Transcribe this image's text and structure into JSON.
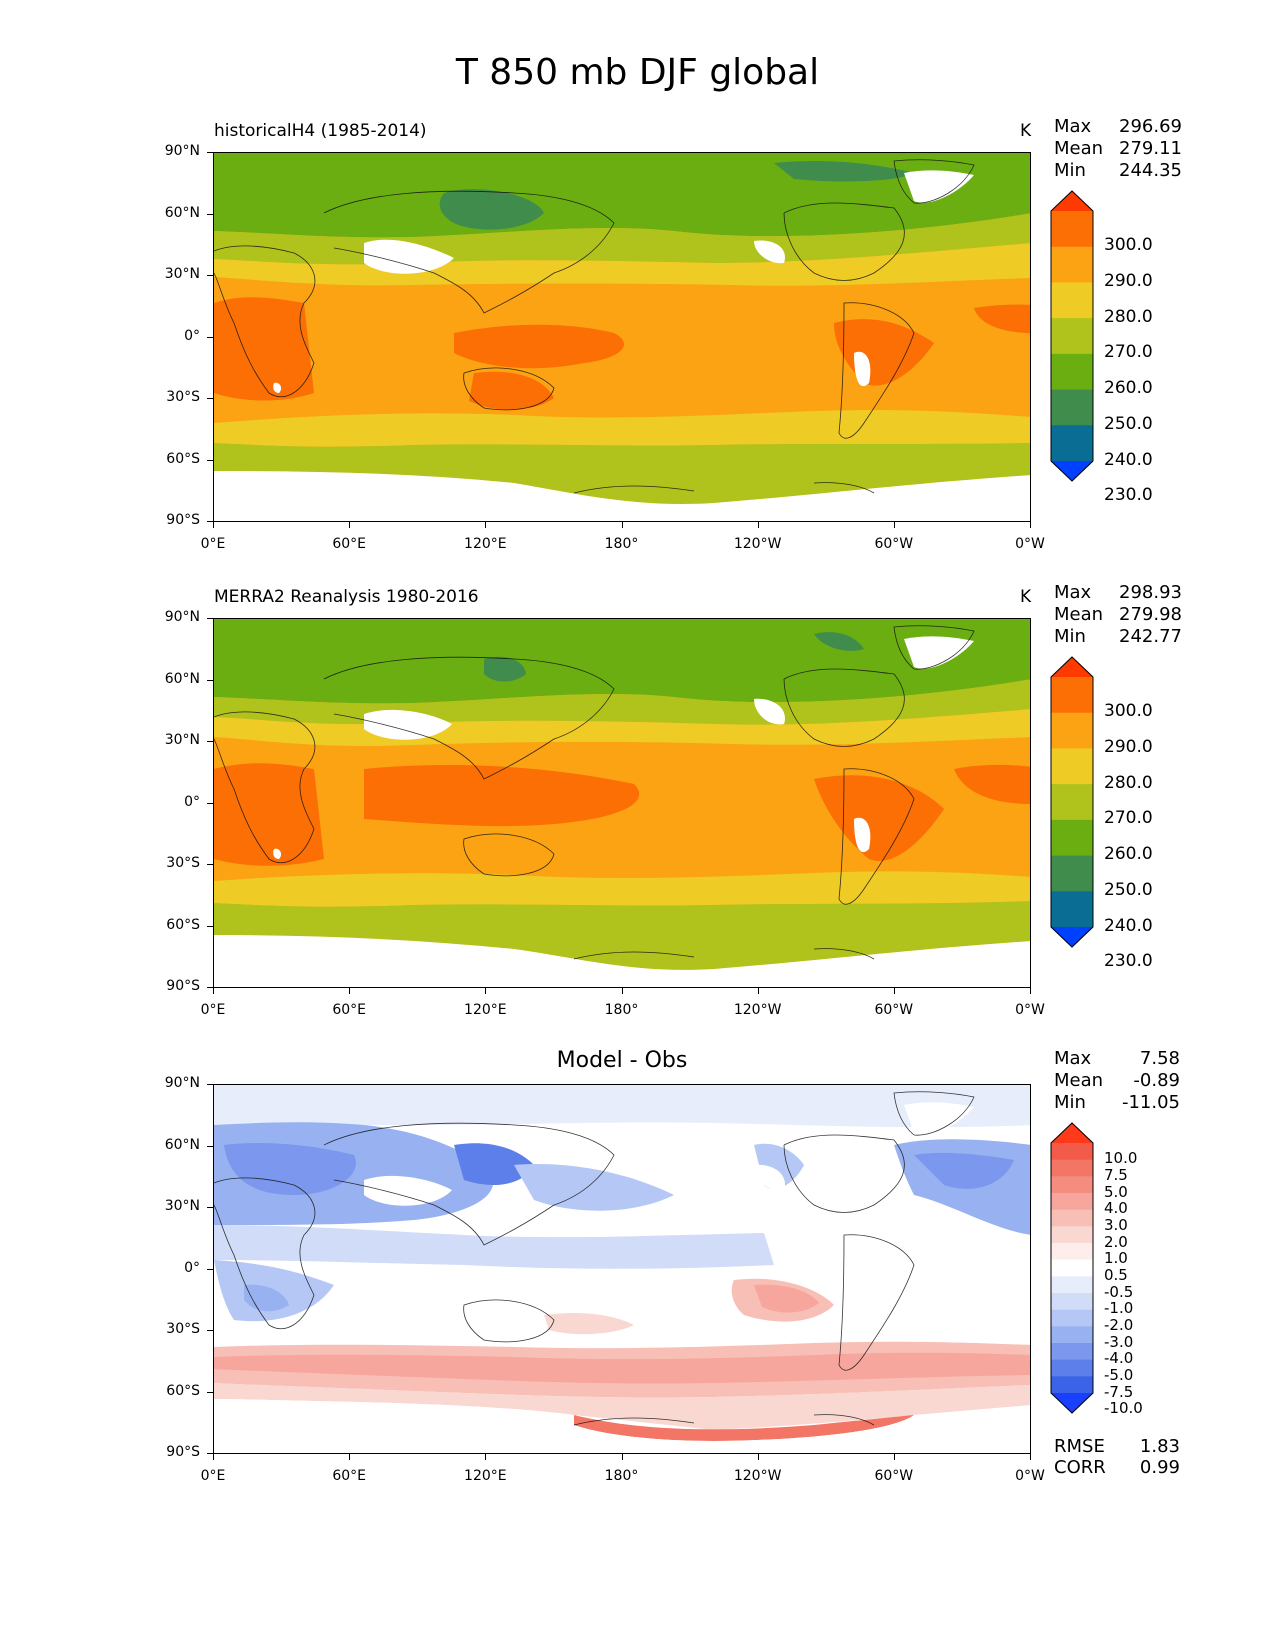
{
  "figure": {
    "title": "T 850 mb DJF global"
  },
  "axes": {
    "lat_labels": [
      "90°N",
      "60°N",
      "30°N",
      "0°",
      "30°S",
      "60°S",
      "90°S"
    ],
    "lon_labels": [
      "0°E",
      "60°E",
      "120°E",
      "180°",
      "120°W",
      "60°W",
      "0°W"
    ]
  },
  "panels": [
    {
      "title": "historicalH4 (1985-2014)",
      "units": "K",
      "stats": {
        "max_label": "Max",
        "max": "296.69",
        "mean_label": "Mean",
        "mean": "279.11",
        "min_label": "Min",
        "min": "244.35"
      },
      "colorbar": {
        "labels": [
          "300.0",
          "290.0",
          "280.0",
          "270.0",
          "260.0",
          "250.0",
          "240.0",
          "230.0"
        ],
        "colors": [
          "#ff3a00",
          "#fb6f05",
          "#fba313",
          "#efcb26",
          "#b0c21c",
          "#6aae12",
          "#3f8c4c",
          "#0a6e94",
          "#0040ff"
        ]
      }
    },
    {
      "title": "MERRA2 Reanalysis 1980-2016",
      "units": "K",
      "stats": {
        "max_label": "Max",
        "max": "298.93",
        "mean_label": "Mean",
        "mean": "279.98",
        "min_label": "Min",
        "min": "242.77"
      },
      "colorbar": {
        "labels": [
          "300.0",
          "290.0",
          "280.0",
          "270.0",
          "260.0",
          "250.0",
          "240.0",
          "230.0"
        ],
        "colors": [
          "#ff3a00",
          "#fb6f05",
          "#fba313",
          "#efcb26",
          "#b0c21c",
          "#6aae12",
          "#3f8c4c",
          "#0a6e94",
          "#0040ff"
        ]
      }
    },
    {
      "title": "Model - Obs",
      "stats": {
        "max_label": "Max",
        "max": "7.58",
        "mean_label": "Mean",
        "mean": "-0.89",
        "min_label": "Min",
        "min": "-11.05"
      },
      "colorbar": {
        "labels": [
          "10.0",
          "7.5",
          "5.0",
          "4.0",
          "3.0",
          "2.0",
          "1.0",
          "0.5",
          "-0.5",
          "-1.0",
          "-2.0",
          "-3.0",
          "-4.0",
          "-5.0",
          "-7.5",
          "-10.0"
        ],
        "colors": [
          "#ff3a1a",
          "#f25b4a",
          "#f27565",
          "#f48d80",
          "#f6a69c",
          "#f8bfb6",
          "#fad8d2",
          "#fdeeec",
          "#ffffff",
          "#e8edfb",
          "#d0dcf8",
          "#b5c8f5",
          "#98b1f1",
          "#7b98ee",
          "#5c7fea",
          "#3b63e8",
          "#1a3fff"
        ]
      },
      "metrics": {
        "rmse_label": "RMSE",
        "rmse": "1.83",
        "corr_label": "CORR",
        "corr": "0.99"
      }
    }
  ]
}
